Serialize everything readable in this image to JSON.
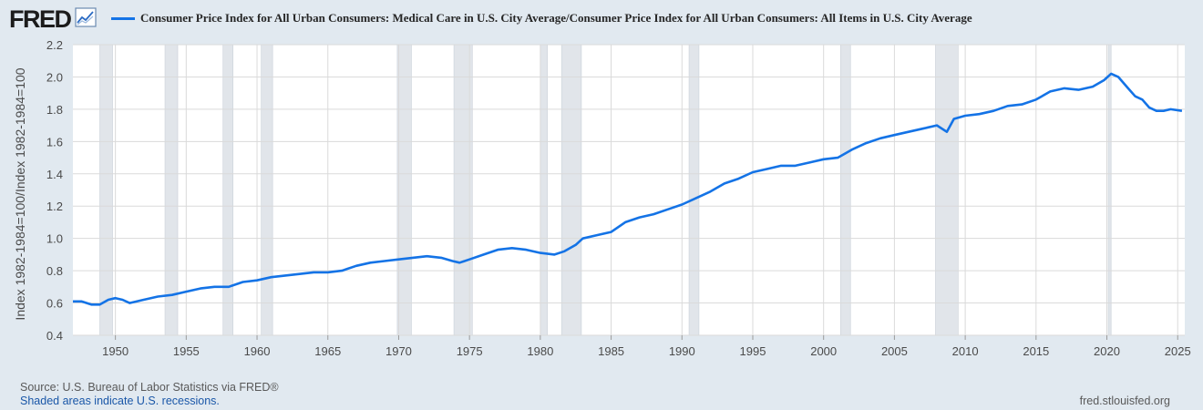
{
  "header": {
    "logo_text": "FRED",
    "logo_icon": "chart-line-icon",
    "legend_label": "Consumer Price Index for All Urban Consumers: Medical Care in U.S. City Average/Consumer Price Index for All Urban Consumers: All Items in U.S. City Average",
    "legend_color": "#1473e6"
  },
  "footer": {
    "source": "Source: U.S. Bureau of Labor Statistics via FRED®",
    "recession_note": "Shaded areas indicate U.S. recessions.",
    "site": "fred.stlouisfed.org"
  },
  "chart_data": {
    "type": "line",
    "title": "",
    "xlabel": "",
    "ylabel": "Index 1982-1984=100/Index 1982-1984=100",
    "xlim": [
      1947.0,
      2025.5
    ],
    "ylim": [
      0.4,
      2.2
    ],
    "grid": true,
    "legend_position": "top",
    "colors": {
      "line": "#1473e6",
      "plot_bg": "#ffffff",
      "recession": "#e1e5ea",
      "grid": "#dadada"
    },
    "x_ticks": [
      "1950",
      "1955",
      "1960",
      "1965",
      "1970",
      "1975",
      "1980",
      "1985",
      "1990",
      "1995",
      "2000",
      "2005",
      "2010",
      "2015",
      "2020",
      "2025"
    ],
    "y_ticks": [
      "0.4",
      "0.6",
      "0.8",
      "1.0",
      "1.2",
      "1.4",
      "1.6",
      "1.8",
      "2.0",
      "2.2"
    ],
    "recessions": [
      [
        1948.9,
        1949.8
      ],
      [
        1953.5,
        1954.4
      ],
      [
        1957.6,
        1958.3
      ],
      [
        1960.3,
        1961.1
      ],
      [
        1969.9,
        1970.9
      ],
      [
        1973.9,
        1975.2
      ],
      [
        1980.0,
        1980.5
      ],
      [
        1981.5,
        1982.9
      ],
      [
        1990.5,
        1991.2
      ],
      [
        2001.2,
        2001.9
      ],
      [
        2007.9,
        2009.5
      ],
      [
        2020.1,
        2020.3
      ]
    ],
    "series": [
      {
        "values": [
          [
            1947.0,
            0.61
          ],
          [
            1947.6,
            0.61
          ],
          [
            1948.3,
            0.59
          ],
          [
            1948.9,
            0.59
          ],
          [
            1949.5,
            0.62
          ],
          [
            1950.0,
            0.63
          ],
          [
            1950.5,
            0.62
          ],
          [
            1951.0,
            0.6
          ],
          [
            1952.0,
            0.62
          ],
          [
            1953.0,
            0.64
          ],
          [
            1954.0,
            0.65
          ],
          [
            1955.0,
            0.67
          ],
          [
            1956.0,
            0.69
          ],
          [
            1957.0,
            0.7
          ],
          [
            1958.0,
            0.7
          ],
          [
            1959.0,
            0.73
          ],
          [
            1960.0,
            0.74
          ],
          [
            1961.0,
            0.76
          ],
          [
            1962.0,
            0.77
          ],
          [
            1963.0,
            0.78
          ],
          [
            1964.0,
            0.79
          ],
          [
            1965.0,
            0.79
          ],
          [
            1966.0,
            0.8
          ],
          [
            1967.0,
            0.83
          ],
          [
            1968.0,
            0.85
          ],
          [
            1969.0,
            0.86
          ],
          [
            1970.0,
            0.87
          ],
          [
            1971.0,
            0.88
          ],
          [
            1972.0,
            0.89
          ],
          [
            1973.0,
            0.88
          ],
          [
            1973.8,
            0.86
          ],
          [
            1974.3,
            0.85
          ],
          [
            1975.0,
            0.87
          ],
          [
            1976.0,
            0.9
          ],
          [
            1977.0,
            0.93
          ],
          [
            1978.0,
            0.94
          ],
          [
            1979.0,
            0.93
          ],
          [
            1980.0,
            0.91
          ],
          [
            1981.0,
            0.9
          ],
          [
            1981.7,
            0.92
          ],
          [
            1982.5,
            0.96
          ],
          [
            1983.0,
            1.0
          ],
          [
            1984.0,
            1.02
          ],
          [
            1985.0,
            1.04
          ],
          [
            1986.0,
            1.1
          ],
          [
            1987.0,
            1.13
          ],
          [
            1988.0,
            1.15
          ],
          [
            1989.0,
            1.18
          ],
          [
            1990.0,
            1.21
          ],
          [
            1991.0,
            1.25
          ],
          [
            1992.0,
            1.29
          ],
          [
            1993.0,
            1.34
          ],
          [
            1994.0,
            1.37
          ],
          [
            1995.0,
            1.41
          ],
          [
            1996.0,
            1.43
          ],
          [
            1997.0,
            1.45
          ],
          [
            1998.0,
            1.45
          ],
          [
            1999.0,
            1.47
          ],
          [
            2000.0,
            1.49
          ],
          [
            2001.0,
            1.5
          ],
          [
            2002.0,
            1.55
          ],
          [
            2003.0,
            1.59
          ],
          [
            2004.0,
            1.62
          ],
          [
            2005.0,
            1.64
          ],
          [
            2006.0,
            1.66
          ],
          [
            2007.0,
            1.68
          ],
          [
            2008.0,
            1.7
          ],
          [
            2008.7,
            1.66
          ],
          [
            2009.2,
            1.74
          ],
          [
            2010.0,
            1.76
          ],
          [
            2011.0,
            1.77
          ],
          [
            2012.0,
            1.79
          ],
          [
            2013.0,
            1.82
          ],
          [
            2014.0,
            1.83
          ],
          [
            2015.0,
            1.86
          ],
          [
            2016.0,
            1.91
          ],
          [
            2017.0,
            1.93
          ],
          [
            2018.0,
            1.92
          ],
          [
            2019.0,
            1.94
          ],
          [
            2019.8,
            1.98
          ],
          [
            2020.3,
            2.02
          ],
          [
            2020.8,
            2.0
          ],
          [
            2021.5,
            1.93
          ],
          [
            2022.0,
            1.88
          ],
          [
            2022.5,
            1.86
          ],
          [
            2023.0,
            1.81
          ],
          [
            2023.5,
            1.79
          ],
          [
            2024.0,
            1.79
          ],
          [
            2024.5,
            1.8
          ],
          [
            2025.3,
            1.79
          ]
        ]
      }
    ]
  }
}
